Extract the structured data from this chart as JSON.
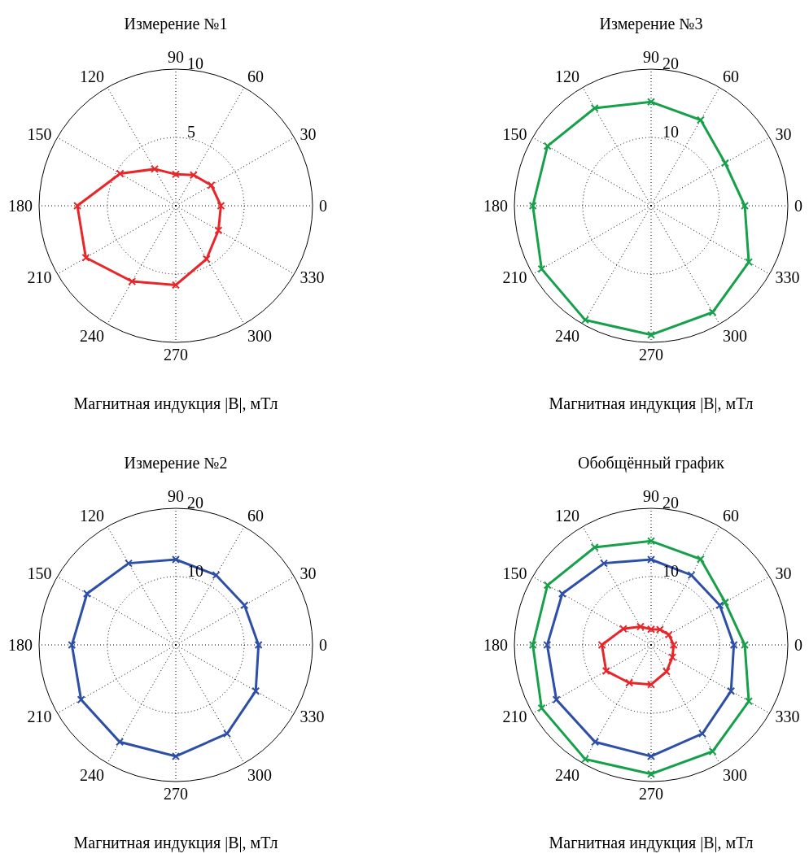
{
  "chart_data": [
    {
      "type": "radar",
      "title": "Измерение №1",
      "xlabel": "Магнитная индукция |B|, мТл",
      "categories": [
        "90",
        "60",
        "30",
        "0",
        "330",
        "300",
        "270",
        "240",
        "210",
        "180",
        "150",
        "120"
      ],
      "ylim": [
        0,
        10
      ],
      "yticks": [
        5,
        10
      ],
      "grid": true,
      "marker": "cross",
      "series": [
        {
          "color": "#e8262a",
          "values": [
            2.3,
            2.6,
            3.0,
            3.3,
            3.6,
            4.5,
            5.8,
            6.4,
            7.6,
            7.2,
            4.7,
            3.1
          ]
        }
      ]
    },
    {
      "type": "radar",
      "title": "Измерение №3",
      "xlabel": "Магнитная индукция |B|, мТл",
      "categories": [
        "90",
        "60",
        "30",
        "0",
        "330",
        "300",
        "270",
        "240",
        "210",
        "180",
        "150",
        "120"
      ],
      "ylim": [
        0,
        20
      ],
      "yticks": [
        10,
        20
      ],
      "grid": true,
      "marker": "cross",
      "series": [
        {
          "color": "#17a04a",
          "values": [
            15.2,
            14.5,
            12.5,
            13.7,
            16.5,
            18.0,
            18.9,
            19.3,
            18.5,
            17.3,
            17.5,
            16.5
          ]
        }
      ]
    },
    {
      "type": "radar",
      "title": "Измерение №2",
      "xlabel": "Магнитная индукция |B|, мТл",
      "categories": [
        "90",
        "60",
        "30",
        "0",
        "330",
        "300",
        "270",
        "240",
        "210",
        "180",
        "150",
        "120"
      ],
      "ylim": [
        0,
        20
      ],
      "yticks": [
        10,
        20
      ],
      "grid": true,
      "marker": "cross",
      "series": [
        {
          "color": "#2e4fa8",
          "values": [
            12.5,
            11.8,
            11.6,
            12.1,
            13.5,
            15.0,
            16.3,
            16.4,
            16.0,
            15.2,
            15.0,
            13.8
          ]
        }
      ]
    },
    {
      "type": "radar",
      "title": "Обобщённый график",
      "xlabel": "Магнитная индукция |B|, мТл",
      "categories": [
        "90",
        "60",
        "30",
        "0",
        "330",
        "300",
        "270",
        "240",
        "210",
        "180",
        "150",
        "120"
      ],
      "ylim": [
        0,
        20
      ],
      "yticks": [
        10,
        20
      ],
      "grid": true,
      "marker": "cross",
      "series": [
        {
          "color": "#17a04a",
          "values": [
            15.2,
            14.5,
            12.5,
            13.7,
            16.5,
            18.0,
            18.9,
            19.3,
            18.5,
            17.3,
            17.5,
            16.5
          ]
        },
        {
          "color": "#2e4fa8",
          "values": [
            12.5,
            11.8,
            11.6,
            12.1,
            13.5,
            15.0,
            16.3,
            16.4,
            16.0,
            15.2,
            15.0,
            13.8
          ]
        },
        {
          "color": "#e8262a",
          "values": [
            2.3,
            2.6,
            3.0,
            3.3,
            3.6,
            4.5,
            5.8,
            6.4,
            7.6,
            7.2,
            4.7,
            3.1
          ]
        }
      ]
    }
  ]
}
